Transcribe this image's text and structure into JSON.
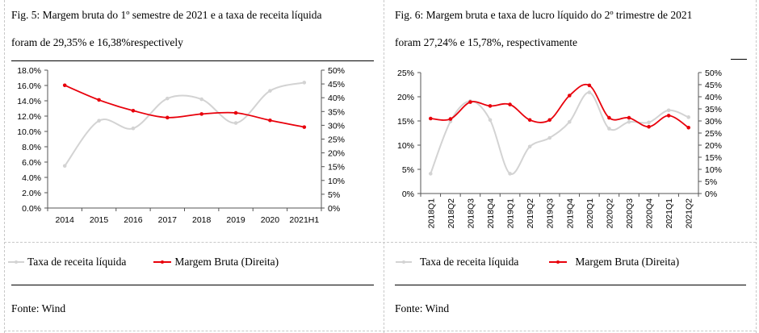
{
  "left": {
    "title_line1": "Fig. 5: Margem bruta do 1º semestre de 2021 e a taxa de receita líquida",
    "title_line2": "foram de 29,35% e 16,38%respectively",
    "legend": [
      "Taxa de receita líquida",
      "Margem Bruta (Direita)"
    ],
    "source": "Fonte: Wind"
  },
  "right": {
    "title_line1": "Fig. 6: Margem bruta e taxa de lucro líquido do 2º trimestre de 2021",
    "title_line2": "foram 27,24% e 15,78%, respectivamente",
    "legend": [
      "Taxa de receita líquida",
      "Margem Bruta (Direita)"
    ],
    "source": "Fonte: Wind"
  },
  "colors": {
    "gray_series": "#d3d3d3",
    "red_series": "#e8000b"
  },
  "chart_data": [
    {
      "type": "line",
      "categories": [
        "2014",
        "2015",
        "2016",
        "2017",
        "2018",
        "2019",
        "2020",
        "2021H1"
      ],
      "series": [
        {
          "name": "Taxa de receita líquida",
          "axis": "left",
          "values": [
            5.5,
            11.4,
            10.4,
            14.3,
            14.2,
            11.1,
            15.3,
            16.38
          ]
        },
        {
          "name": "Margem Bruta (Direita)",
          "axis": "right",
          "values": [
            44.5,
            39.2,
            35.3,
            32.8,
            34.1,
            34.5,
            31.8,
            29.35
          ]
        }
      ],
      "ylim_left": [
        0,
        18
      ],
      "yticks_left": [
        "0.0%",
        "2.0%",
        "4.0%",
        "6.0%",
        "8.0%",
        "10.0%",
        "12.0%",
        "14.0%",
        "16.0%",
        "18.0%"
      ],
      "ylim_right": [
        0,
        50
      ],
      "yticks_right": [
        "0%",
        "5%",
        "10%",
        "15%",
        "20%",
        "25%",
        "30%",
        "35%",
        "40%",
        "45%",
        "50%"
      ],
      "legend_position": "bottom"
    },
    {
      "type": "line",
      "categories": [
        "2018Q1",
        "2018Q2",
        "2018Q3",
        "2018Q4",
        "2019Q1",
        "2019Q2",
        "2019Q3",
        "2019Q4",
        "2020Q1",
        "2020Q2",
        "2020Q3",
        "2020Q4",
        "2021Q1",
        "2021Q2"
      ],
      "series": [
        {
          "name": "Taxa de receita líquida",
          "axis": "left",
          "values": [
            4.1,
            14.9,
            19.1,
            15.2,
            4.1,
            9.7,
            11.5,
            14.8,
            20.9,
            13.4,
            14.8,
            14.7,
            17.2,
            15.78
          ]
        },
        {
          "name": "Margem Bruta (Direita)",
          "axis": "right",
          "values": [
            31.0,
            30.8,
            37.8,
            36.2,
            36.8,
            30.4,
            30.4,
            40.5,
            44.7,
            31.3,
            31.3,
            27.6,
            32.2,
            27.24
          ]
        }
      ],
      "ylim_left": [
        0,
        25
      ],
      "yticks_left": [
        "0%",
        "5%",
        "10%",
        "15%",
        "20%",
        "25%"
      ],
      "ylim_right": [
        0,
        50
      ],
      "yticks_right": [
        "0%",
        "5%",
        "10%",
        "15%",
        "20%",
        "25%",
        "30%",
        "35%",
        "40%",
        "45%",
        "50%"
      ],
      "legend_position": "bottom"
    }
  ]
}
